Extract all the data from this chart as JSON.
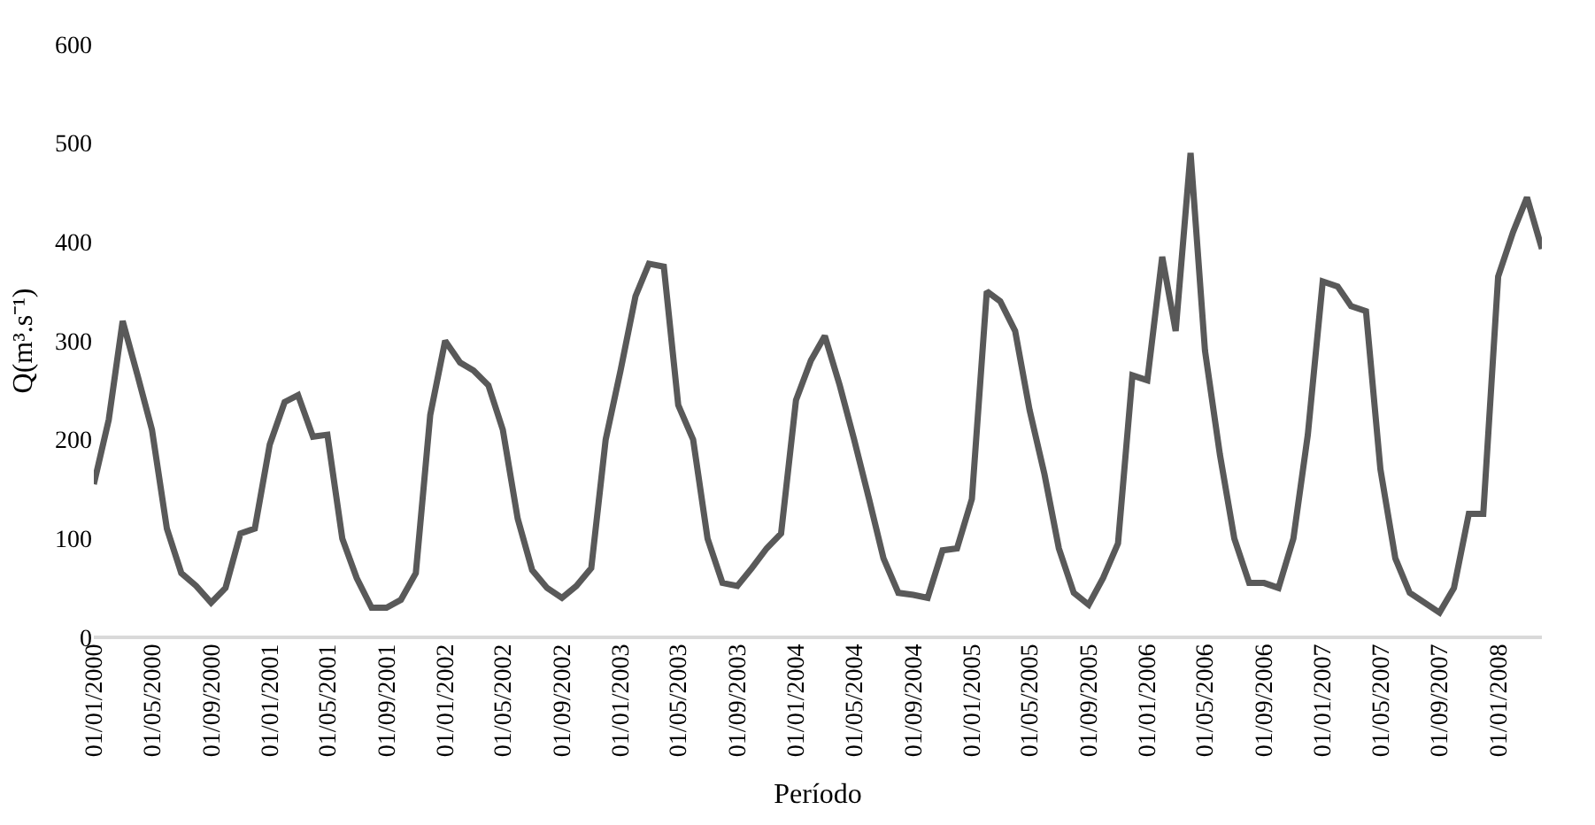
{
  "chart_data": {
    "type": "line",
    "xlabel": "Período",
    "ylabel": "Q(m³.s⁻¹)",
    "x": [
      "2000-01",
      "2000-02",
      "2000-03",
      "2000-04",
      "2000-05",
      "2000-06",
      "2000-07",
      "2000-08",
      "2000-09",
      "2000-10",
      "2000-11",
      "2000-12",
      "2001-01",
      "2001-02",
      "2001-03",
      "2001-04",
      "2001-05",
      "2001-06",
      "2001-07",
      "2001-08",
      "2001-09",
      "2001-10",
      "2001-11",
      "2001-12",
      "2002-01",
      "2002-02",
      "2002-03",
      "2002-04",
      "2002-05",
      "2002-06",
      "2002-07",
      "2002-08",
      "2002-09",
      "2002-10",
      "2002-11",
      "2002-12",
      "2003-01",
      "2003-02",
      "2003-03",
      "2003-04",
      "2003-05",
      "2003-06",
      "2003-07",
      "2003-08",
      "2003-09",
      "2003-10",
      "2003-11",
      "2003-12",
      "2004-01",
      "2004-02",
      "2004-03",
      "2004-04",
      "2004-05",
      "2004-06",
      "2004-07",
      "2004-08",
      "2004-09",
      "2004-10",
      "2004-11",
      "2004-12",
      "2005-01",
      "2005-02",
      "2005-03",
      "2005-04",
      "2005-05",
      "2005-06",
      "2005-07",
      "2005-08",
      "2005-09",
      "2005-10",
      "2005-11",
      "2005-12",
      "2006-01",
      "2006-02",
      "2006-03",
      "2006-04",
      "2006-05",
      "2006-06",
      "2006-07",
      "2006-08",
      "2006-09",
      "2006-10",
      "2006-11",
      "2006-12",
      "2007-01",
      "2007-02",
      "2007-03",
      "2007-04",
      "2007-05",
      "2007-06",
      "2007-07",
      "2007-08",
      "2007-09",
      "2007-10",
      "2007-11",
      "2007-12",
      "2008-01",
      "2008-02",
      "2008-03",
      "2008-04"
    ],
    "series": [
      {
        "color": "#595959",
        "values": [
          155,
          220,
          320,
          265,
          210,
          110,
          65,
          52,
          35,
          50,
          105,
          110,
          195,
          238,
          245,
          203,
          205,
          100,
          60,
          30,
          30,
          38,
          65,
          225,
          300,
          278,
          270,
          255,
          210,
          120,
          68,
          50,
          40,
          52,
          70,
          200,
          270,
          345,
          378,
          375,
          235,
          200,
          100,
          55,
          52,
          70,
          90,
          105,
          240,
          280,
          305,
          255,
          200,
          140,
          80,
          45,
          43,
          40,
          88,
          90,
          140,
          350,
          340,
          310,
          230,
          165,
          90,
          45,
          33,
          60,
          95,
          265,
          260,
          385,
          310,
          490,
          290,
          185,
          100,
          55,
          55,
          50,
          100,
          205,
          360,
          355,
          335,
          330,
          170,
          80,
          45,
          35,
          25,
          50,
          125,
          125,
          365,
          410,
          445,
          393
        ]
      }
    ],
    "ylim": [
      0,
      600
    ],
    "yticks": [
      0,
      100,
      200,
      300,
      400,
      500,
      600
    ],
    "xlim": [
      "2000-01",
      "2008-04"
    ],
    "xticks": [
      {
        "value": "2000-01",
        "label": "01/01/2000"
      },
      {
        "value": "2000-05",
        "label": "01/05/2000"
      },
      {
        "value": "2000-09",
        "label": "01/09/2000"
      },
      {
        "value": "2001-01",
        "label": "01/01/2001"
      },
      {
        "value": "2001-05",
        "label": "01/05/2001"
      },
      {
        "value": "2001-09",
        "label": "01/09/2001"
      },
      {
        "value": "2002-01",
        "label": "01/01/2002"
      },
      {
        "value": "2002-05",
        "label": "01/05/2002"
      },
      {
        "value": "2002-09",
        "label": "01/09/2002"
      },
      {
        "value": "2003-01",
        "label": "01/01/2003"
      },
      {
        "value": "2003-05",
        "label": "01/05/2003"
      },
      {
        "value": "2003-09",
        "label": "01/09/2003"
      },
      {
        "value": "2004-01",
        "label": "01/01/2004"
      },
      {
        "value": "2004-05",
        "label": "01/05/2004"
      },
      {
        "value": "2004-09",
        "label": "01/09/2004"
      },
      {
        "value": "2005-01",
        "label": "01/01/2005"
      },
      {
        "value": "2005-05",
        "label": "01/05/2005"
      },
      {
        "value": "2005-09",
        "label": "01/09/2005"
      },
      {
        "value": "2006-01",
        "label": "01/01/2006"
      },
      {
        "value": "2006-05",
        "label": "01/05/2006"
      },
      {
        "value": "2006-09",
        "label": "01/09/2006"
      },
      {
        "value": "2007-01",
        "label": "01/01/2007"
      },
      {
        "value": "2007-05",
        "label": "01/05/2007"
      },
      {
        "value": "2007-09",
        "label": "01/09/2007"
      },
      {
        "value": "2008-01",
        "label": "01/01/2008"
      }
    ],
    "line_style": "solid"
  }
}
